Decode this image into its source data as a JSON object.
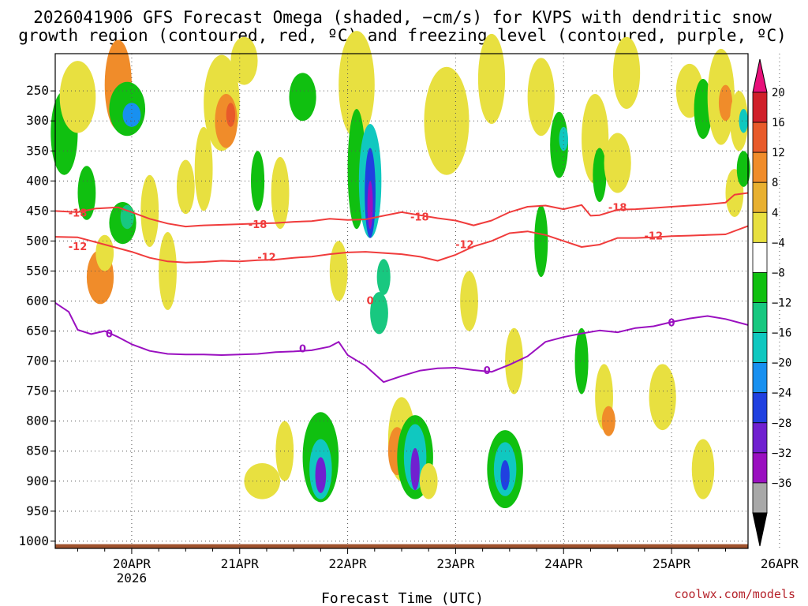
{
  "chart_data": {
    "type": "heatmap",
    "title_line1": "2026041906 GFS Forecast Omega (shaded, −cm/s) for KVPS with dendritic snow",
    "title_line2": "growth region (contoured, red, ºC) and freezing level (contoured, purple, ºC)",
    "xlabel": "Forecast Time (UTC)",
    "credit": "coolwx.com/models",
    "y_ticks": [
      "250",
      "300",
      "350",
      "400",
      "450",
      "500",
      "550",
      "600",
      "650",
      "700",
      "750",
      "800",
      "850",
      "900",
      "950",
      "1000"
    ],
    "y_tick_values": [
      250,
      300,
      350,
      400,
      450,
      500,
      550,
      600,
      650,
      700,
      750,
      800,
      850,
      900,
      950,
      1000
    ],
    "x_ticks": [
      "20APR",
      "21APR",
      "22APR",
      "23APR",
      "24APR",
      "25APR",
      "26APR"
    ],
    "x_year": "2026",
    "x_hours_range": [
      -17,
      137
    ],
    "p_range": [
      188,
      1012
    ],
    "colorbar": {
      "ticks": [
        "20",
        "16",
        "12",
        "8",
        "4",
        "−4",
        "−8",
        "−12",
        "−16",
        "−20",
        "−24",
        "−28",
        "−32",
        "−36"
      ],
      "colors": [
        "#d0202a",
        "#e85a2a",
        "#f08c2a",
        "#e8b030",
        "#e8e040",
        "#ffffff",
        "#10c010",
        "#18c880",
        "#10c8c0",
        "#1890f0",
        "#2040e0",
        "#7020d0",
        "#9a10c0",
        "#a8a8a8"
      ],
      "top_arrow_color": "#e8107a",
      "bottom_arrow_color": "#000000"
    },
    "contour_labels": {
      "dgz_upper": "-18",
      "dgz_lower": "-12",
      "freezing": "0"
    },
    "series": [
      {
        "name": "-18C isotherm",
        "color": "#f03c3c",
        "x_hours": [
          -17,
          -12,
          -8,
          -3,
          0,
          4,
          8,
          12,
          16,
          20,
          24,
          28,
          32,
          36,
          40,
          44,
          48,
          52,
          56,
          60,
          64,
          68,
          72,
          76,
          80,
          84,
          88,
          92,
          96,
          100,
          102,
          104,
          108,
          112,
          116,
          120,
          124,
          128,
          132,
          134,
          137
        ],
        "p_hPa": [
          450,
          452,
          446,
          444,
          452,
          463,
          471,
          476,
          474,
          473,
          472,
          471,
          470,
          468,
          467,
          463,
          465,
          464,
          458,
          452,
          457,
          462,
          466,
          474,
          466,
          452,
          443,
          441,
          447,
          440,
          458,
          457,
          448,
          447,
          445,
          443,
          441,
          439,
          436,
          423,
          420
        ]
      },
      {
        "name": "-12C isotherm",
        "color": "#f03c3c",
        "x_hours": [
          -17,
          -12,
          -8,
          -4,
          0,
          4,
          8,
          12,
          16,
          20,
          24,
          28,
          32,
          36,
          40,
          44,
          48,
          52,
          56,
          60,
          64,
          68,
          72,
          76,
          80,
          84,
          88,
          92,
          96,
          100,
          104,
          108,
          112,
          116,
          120,
          124,
          128,
          132,
          137
        ],
        "p_hPa": [
          493,
          494,
          502,
          510,
          518,
          528,
          534,
          536,
          535,
          533,
          534,
          532,
          531,
          528,
          526,
          522,
          519,
          518,
          520,
          522,
          526,
          533,
          523,
          509,
          500,
          487,
          484,
          490,
          500,
          510,
          506,
          495,
          495,
          494,
          492,
          491,
          490,
          489,
          475
        ]
      },
      {
        "name": "0C freezing level",
        "color": "#9a10c0",
        "x_hours": [
          -17,
          -14,
          -12,
          -9,
          -6,
          -3,
          0,
          4,
          8,
          12,
          16,
          20,
          24,
          28,
          32,
          36,
          40,
          44,
          46,
          48,
          52,
          56,
          60,
          64,
          68,
          72,
          76,
          80,
          84,
          88,
          92,
          96,
          100,
          104,
          108,
          112,
          116,
          120,
          124,
          128,
          132,
          137
        ],
        "p_hPa": [
          603,
          618,
          648,
          655,
          650,
          660,
          672,
          683,
          688,
          689,
          689,
          690,
          689,
          688,
          685,
          684,
          682,
          676,
          668,
          690,
          708,
          735,
          725,
          716,
          712,
          711,
          715,
          718,
          706,
          692,
          668,
          660,
          654,
          649,
          652,
          645,
          642,
          635,
          629,
          625,
          630,
          640
        ]
      }
    ]
  }
}
